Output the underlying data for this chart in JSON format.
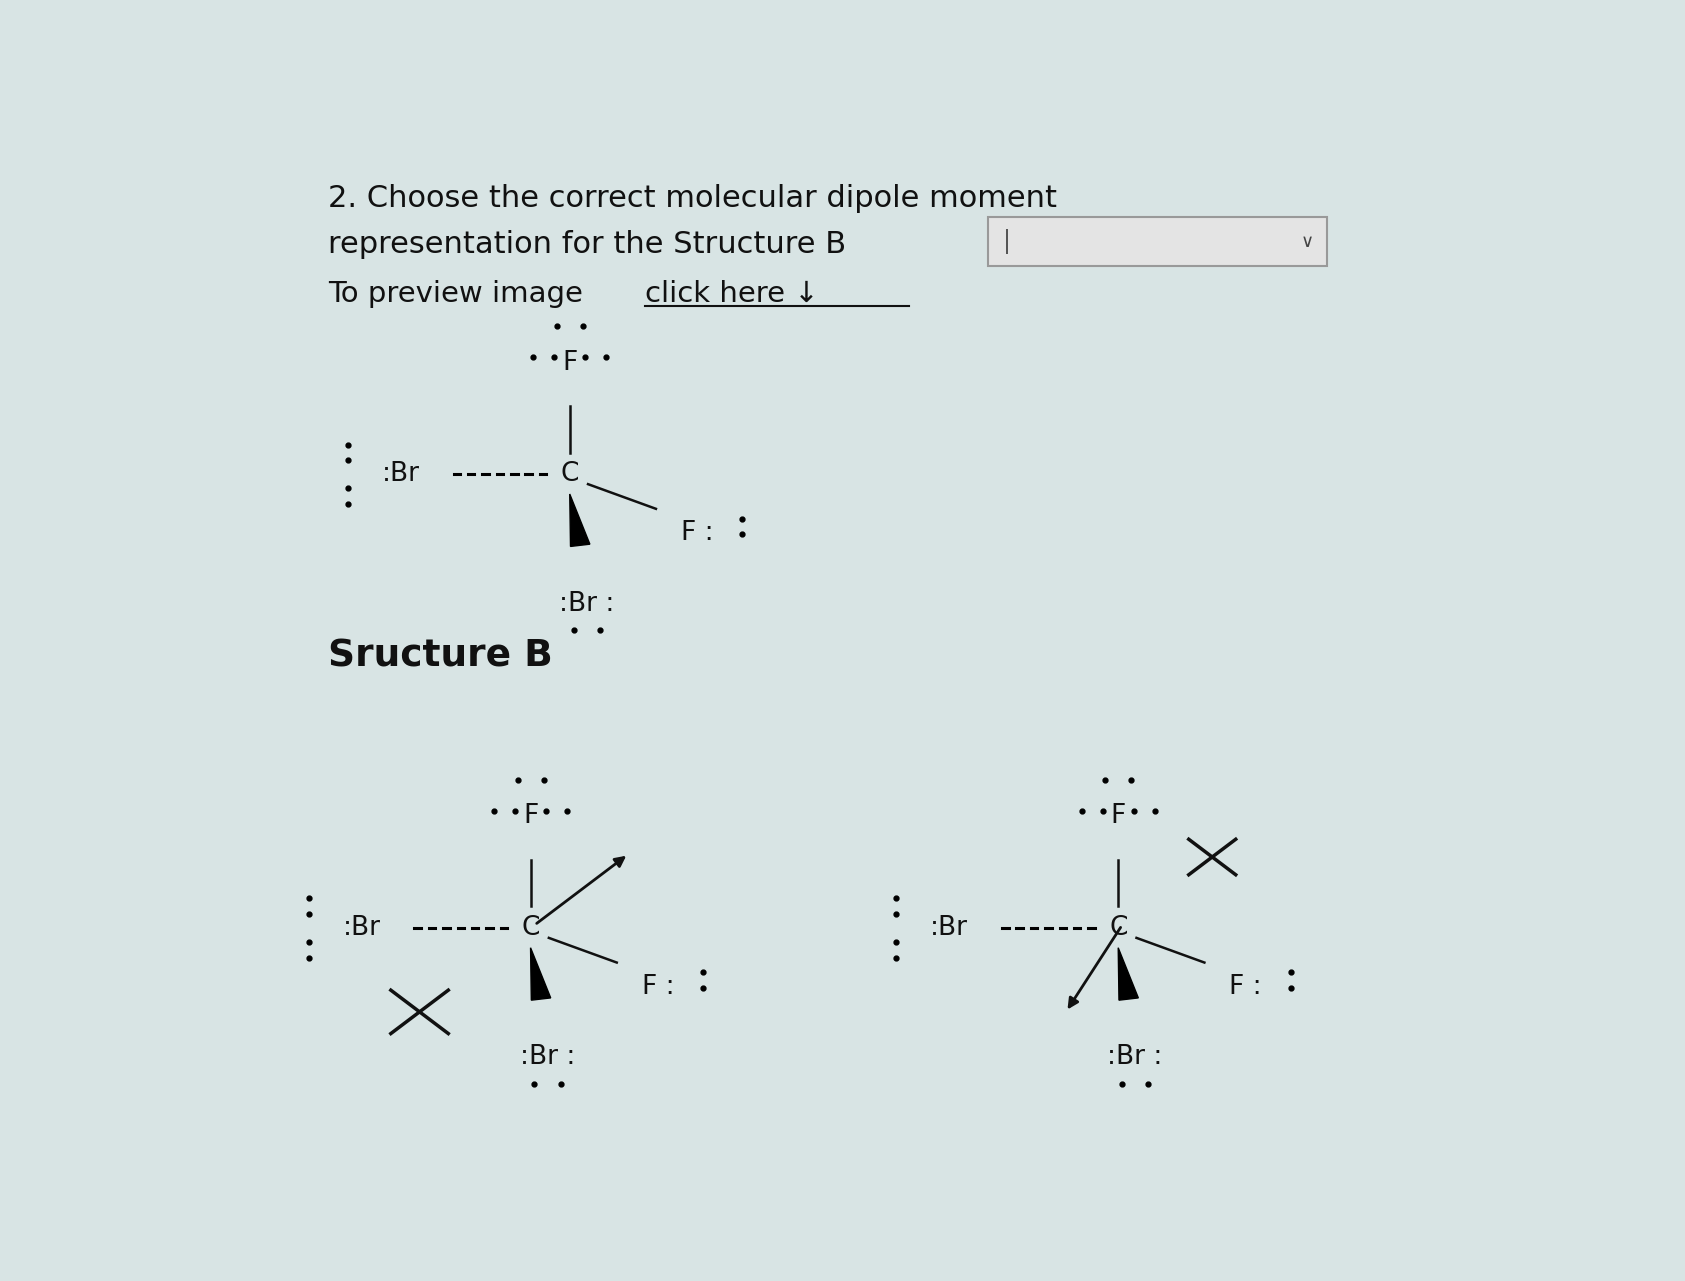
{
  "bg_color": "#d8e4e4",
  "title_line1": "2. Choose the correct molecular dipole moment",
  "title_line2": "representation for the Structure B",
  "preview_text": "To preview image ",
  "preview_link": "click here ↓",
  "structure_label": "Sructure B",
  "text_color": "#111111"
}
